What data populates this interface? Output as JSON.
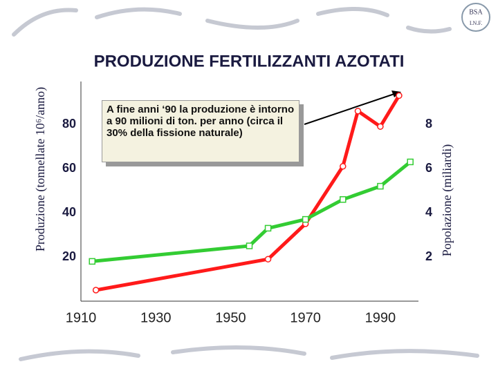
{
  "logo": {
    "top": "BSA",
    "bottom": "I.N.F."
  },
  "chart_data": {
    "type": "line",
    "title": "PRODUZIONE FERTILIZZANTI AZOTATI",
    "ylabel": "Produzione (tonnellate 10⁶/anno)",
    "y2label": "Popolazione (miliardi)",
    "annotation": "A fine anni ‘90 la produzione  è intorno a 90 milioni di ton. per anno (circa il 30%  della fissione naturale)",
    "xlim": [
      1910,
      2000
    ],
    "xticks": [
      1910,
      1930,
      1950,
      1970,
      1990
    ],
    "ylim": [
      0,
      100
    ],
    "yticks": [
      20,
      40,
      60,
      80
    ],
    "y2lim": [
      0,
      10
    ],
    "y2ticks": [
      2,
      4,
      6,
      8
    ],
    "series": [
      {
        "name": "Produzione fertilizzanti",
        "color": "#ff1a1a",
        "marker": "circle",
        "x": [
          1914,
          1960,
          1970,
          1980,
          1984,
          1990,
          1995
        ],
        "values": [
          5,
          19,
          35,
          61,
          86,
          79,
          93
        ]
      },
      {
        "name": "Popolazione",
        "color": "#33cc33",
        "marker": "square",
        "axis": "y2",
        "x": [
          1913,
          1955,
          1960,
          1970,
          1980,
          1990,
          1998
        ],
        "values": [
          1.8,
          2.5,
          3.3,
          3.7,
          4.6,
          5.2,
          6.3
        ]
      }
    ]
  }
}
